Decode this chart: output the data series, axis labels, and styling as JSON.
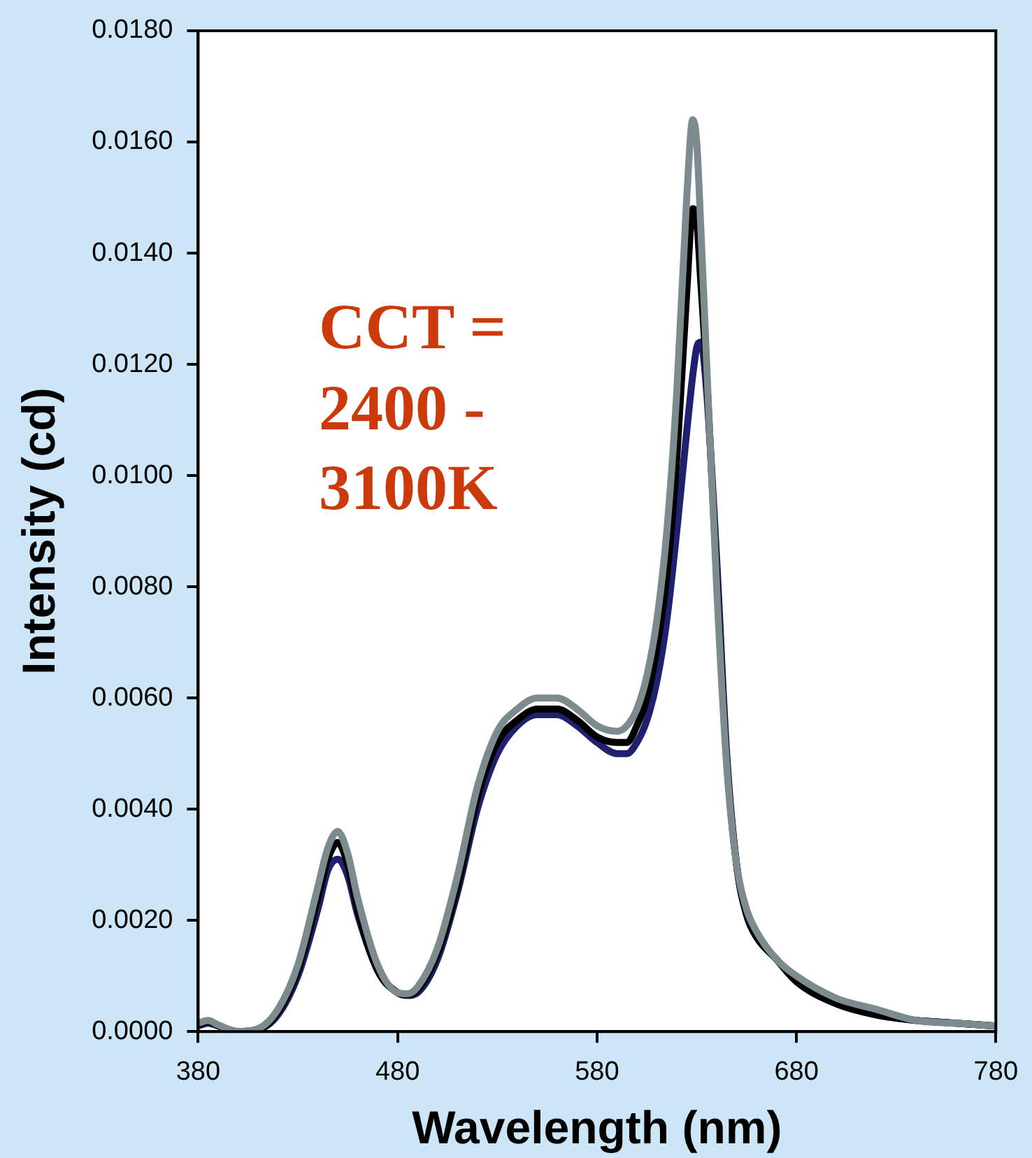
{
  "chart_data": {
    "type": "line",
    "xlabel": "Wavelength (nm)",
    "ylabel": "Intensity (cd)",
    "annotations": [
      "CCT = 2400 - 3100K"
    ],
    "x": [
      380,
      385,
      390,
      400,
      410,
      420,
      430,
      440,
      445,
      450,
      455,
      460,
      470,
      480,
      485,
      490,
      500,
      510,
      520,
      530,
      540,
      550,
      560,
      570,
      580,
      590,
      595,
      600,
      605,
      610,
      615,
      620,
      625,
      628,
      630,
      632,
      635,
      640,
      645,
      650,
      655,
      660,
      670,
      680,
      700,
      720,
      740,
      760,
      780
    ],
    "series": [
      {
        "color": "#7b8b8e",
        "values": [
          0.00015,
          0.0002,
          0.00012,
          0,
          5e-05,
          0.0004,
          0.0012,
          0.0026,
          0.0033,
          0.0036,
          0.0032,
          0.0024,
          0.0012,
          0.0007,
          0.00068,
          0.0008,
          0.0015,
          0.0028,
          0.0044,
          0.0054,
          0.0058,
          0.006,
          0.006,
          0.0058,
          0.0055,
          0.0054,
          0.0055,
          0.0058,
          0.0064,
          0.0074,
          0.009,
          0.0115,
          0.015,
          0.0164,
          0.016,
          0.0145,
          0.012,
          0.008,
          0.0048,
          0.003,
          0.0022,
          0.0018,
          0.0013,
          0.001,
          0.0006,
          0.0004,
          0.0002,
          0.00015,
          0.0001
        ]
      },
      {
        "color": "#000000",
        "values": [
          0.00012,
          0.00018,
          0.00011,
          0,
          4e-05,
          0.00035,
          0.0011,
          0.0024,
          0.0031,
          0.0034,
          0.003,
          0.0022,
          0.0011,
          0.0007,
          0.00066,
          0.00075,
          0.0014,
          0.0026,
          0.0042,
          0.0052,
          0.0056,
          0.0058,
          0.0058,
          0.0056,
          0.0053,
          0.0052,
          0.0052,
          0.0055,
          0.006,
          0.0069,
          0.0082,
          0.0103,
          0.0133,
          0.0148,
          0.0146,
          0.0135,
          0.0118,
          0.0082,
          0.0049,
          0.003,
          0.0021,
          0.0017,
          0.0013,
          0.0009,
          0.0005,
          0.0003,
          0.0002,
          0.00015,
          0.0001
        ]
      },
      {
        "color": "#1f2170",
        "values": [
          0.0001,
          0.00015,
          0.0001,
          0,
          3e-05,
          0.0003,
          0.001,
          0.0022,
          0.0029,
          0.0031,
          0.0028,
          0.0021,
          0.0011,
          0.0007,
          0.00065,
          0.0007,
          0.0013,
          0.0025,
          0.004,
          0.005,
          0.0055,
          0.0057,
          0.0057,
          0.0055,
          0.0052,
          0.005,
          0.005,
          0.0052,
          0.0056,
          0.0063,
          0.0074,
          0.009,
          0.0108,
          0.0118,
          0.0123,
          0.0124,
          0.0115,
          0.0085,
          0.005,
          0.003,
          0.0021,
          0.0017,
          0.0013,
          0.0009,
          0.0005,
          0.0003,
          0.0002,
          0.00015,
          0.0001
        ]
      }
    ],
    "xlim": [
      380,
      780
    ],
    "xticks": [
      380,
      480,
      580,
      680,
      780
    ],
    "ylim": [
      0,
      0.018
    ],
    "yticks": [
      {
        "value": 0,
        "label": "0.0000"
      },
      {
        "value": 0.002,
        "label": "0.0020"
      },
      {
        "value": 0.004,
        "label": "0.0040"
      },
      {
        "value": 0.006,
        "label": "0.0060"
      },
      {
        "value": 0.008,
        "label": "0.0080"
      },
      {
        "value": 0.01,
        "label": "0.0100"
      },
      {
        "value": 0.012,
        "label": "0.0120"
      },
      {
        "value": 0.014,
        "label": "0.0140"
      },
      {
        "value": 0.016,
        "label": "0.0160"
      },
      {
        "value": 0.018,
        "label": "0.0180"
      }
    ],
    "grid": false,
    "legend": false,
    "marker": "none",
    "line_style": "solid"
  }
}
